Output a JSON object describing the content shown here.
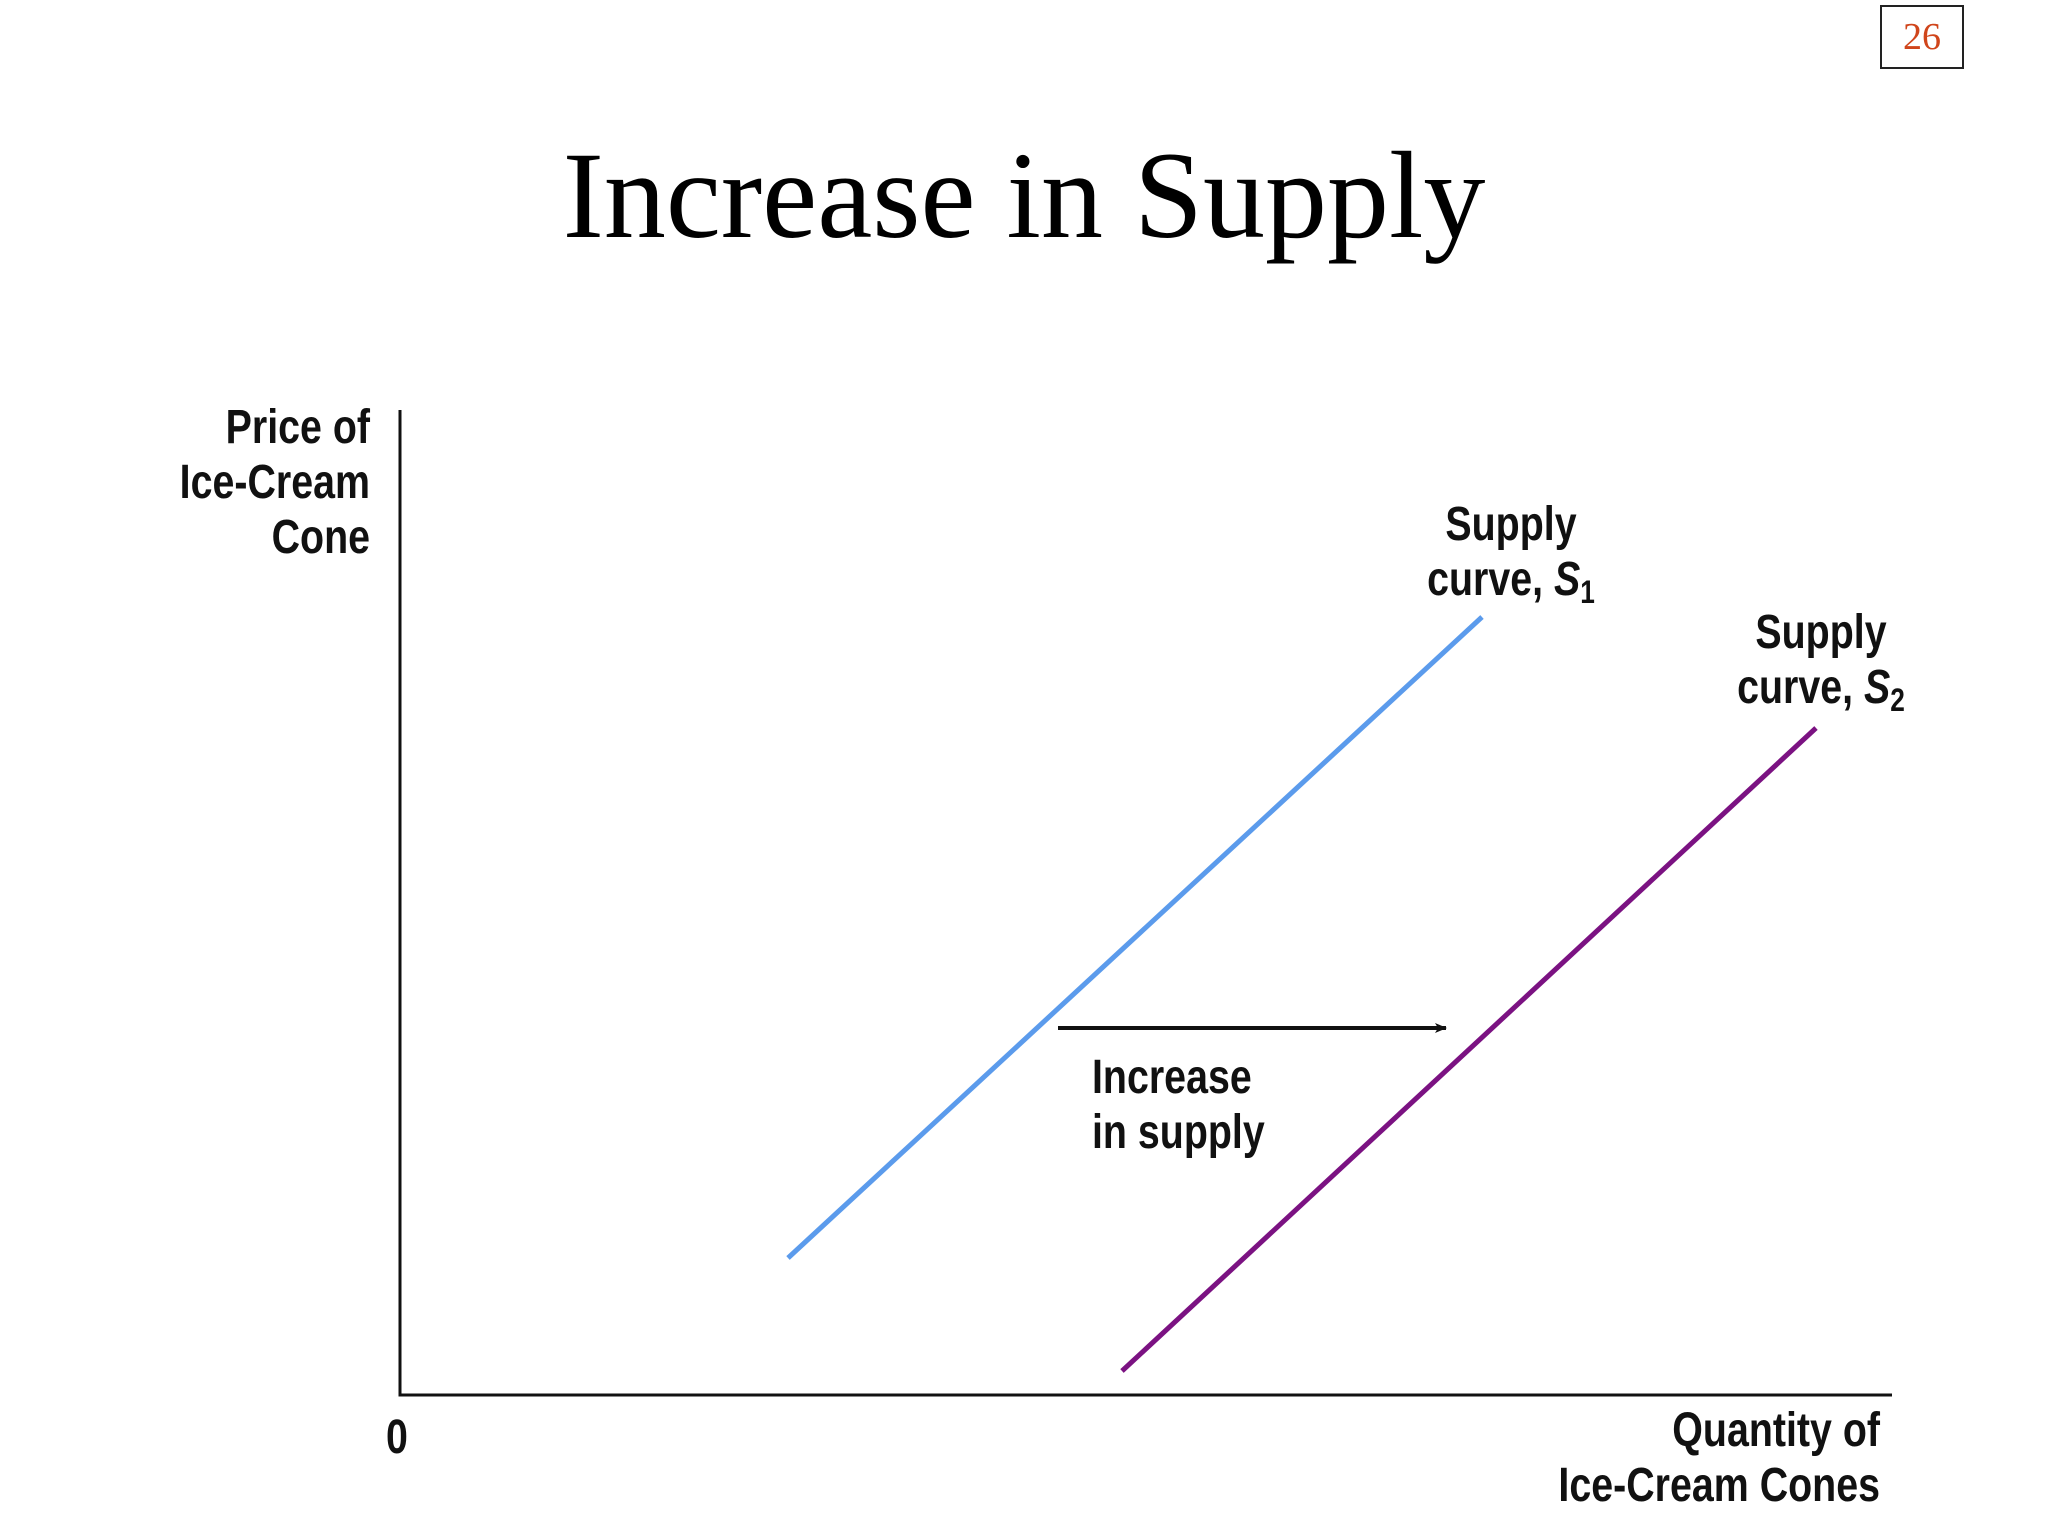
{
  "slide": {
    "page_number": "26",
    "title": "Increase in Supply"
  },
  "colors": {
    "supply_curve_1": "#5b9bec",
    "supply_curve_2": "#7b1282",
    "arrow": "#111111",
    "page_number_text": "#d0451b"
  },
  "diagram": {
    "y_axis_label_lines": [
      "Price of",
      "Ice-Cream",
      "Cone"
    ],
    "x_axis_label_lines": [
      "Quantity of",
      "Ice-Cream Cones"
    ],
    "origin_label": "0",
    "curves": [
      {
        "line1": "Supply",
        "line2_prefix": "curve, ",
        "symbol": "S",
        "subscript": "1",
        "color": "#5b9bec"
      },
      {
        "line1": "Supply",
        "line2_prefix": "curve, ",
        "symbol": "S",
        "subscript": "2",
        "color": "#7b1282"
      }
    ],
    "shift_label_lines": [
      "Increase",
      "in supply"
    ]
  }
}
